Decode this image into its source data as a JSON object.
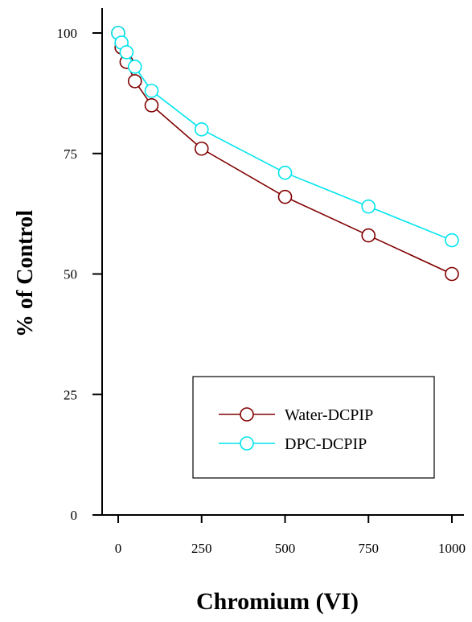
{
  "chart_data": {
    "type": "line",
    "title": "",
    "xlabel": "Chromium (VI)",
    "ylabel": "% of Control",
    "xlim": [
      0,
      1000
    ],
    "ylim": [
      0,
      100
    ],
    "x_ticks": [
      0,
      250,
      500,
      750,
      1000
    ],
    "y_ticks": [
      0,
      25,
      50,
      75,
      100
    ],
    "x_tick_labels": [
      "0",
      "250",
      "500",
      "750",
      "1000"
    ],
    "y_tick_labels": [
      "0",
      "25",
      "50",
      "75",
      "100"
    ],
    "grid": false,
    "legend_position": "bottom-right",
    "series": [
      {
        "name": "Water-DCPIP",
        "color": "#800000",
        "marker": "open-circle",
        "x": [
          0,
          10,
          25,
          50,
          100,
          250,
          500,
          750,
          1000
        ],
        "y": [
          100,
          97,
          94,
          90,
          85,
          76,
          66,
          58,
          50
        ]
      },
      {
        "name": "DPC-DCPIP",
        "color": "#00e5ee",
        "marker": "open-circle",
        "x": [
          0,
          10,
          25,
          50,
          100,
          250,
          500,
          750,
          1000
        ],
        "y": [
          100,
          98,
          96,
          93,
          88,
          80,
          71,
          64,
          57
        ]
      }
    ]
  }
}
